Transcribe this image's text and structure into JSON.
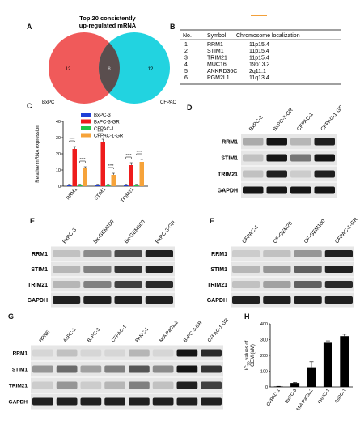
{
  "panels": {
    "A": {
      "letter": "A",
      "title_line1": "Top 20 consistently",
      "title_line2": "up-regulated mRNA",
      "left_label": "BxPC",
      "right_label": "CFPAC",
      "left_only": "12",
      "overlap": "8",
      "right_only": "12",
      "colors": {
        "left": "#f05a5a",
        "right": "#22d3e0",
        "overlap": "#5a4e4e"
      }
    },
    "B": {
      "letter": "B",
      "headers": [
        "No.",
        "Symbol",
        "Chromosome localization"
      ],
      "rows": [
        [
          "1",
          "RRM1",
          "11p15.4"
        ],
        [
          "2",
          "STIM1",
          "11p15.4"
        ],
        [
          "3",
          "TRIM21",
          "11p15.4"
        ],
        [
          "4",
          "MUC16",
          "19p13.2"
        ],
        [
          "5",
          "ANKRD36C",
          "2q11.1"
        ],
        [
          "6",
          "PGM2L1",
          "11q13.4"
        ]
      ]
    },
    "C": {
      "letter": "C",
      "chart_data": {
        "type": "bar",
        "categories": [
          "RRM1",
          "STIM1",
          "TRIM21"
        ],
        "ylabel": "Relative mRNA expression",
        "ylim": [
          0,
          40
        ],
        "yticks": [
          "0",
          "10",
          "20",
          "30",
          "40"
        ],
        "legend_position": "top-right",
        "series": [
          {
            "name": "BxPC-3",
            "color": "#1f3fd6",
            "values": [
              1,
              1,
              1
            ],
            "errors": [
              0.1,
              0.1,
              0.1
            ]
          },
          {
            "name": "BxPC-3-GR",
            "color": "#ee1c1c",
            "values": [
              23,
              27,
              13
            ],
            "errors": [
              1.5,
              2.0,
              1.5
            ]
          },
          {
            "name": "CFPAC-1",
            "color": "#22c84a",
            "values": [
              1,
              1,
              1
            ],
            "errors": [
              0.1,
              0.1,
              0.1
            ]
          },
          {
            "name": "CFPAC-1-GR",
            "color": "#f6a33a",
            "values": [
              11,
              7,
              15
            ],
            "errors": [
              1.0,
              1.0,
              1.5
            ]
          }
        ],
        "significance": [
          "****",
          "****",
          "****",
          "****",
          "****",
          "****"
        ]
      }
    },
    "D": {
      "letter": "D",
      "lanes": [
        "BxPC-3",
        "BxPC-3-GR",
        "CFPAC-1",
        "CFPAC-1-GR"
      ],
      "rows": [
        "RRM1",
        "STIM1",
        "TRIM21",
        "GAPDH"
      ],
      "intensity": [
        [
          0.25,
          0.95,
          0.2,
          0.9
        ],
        [
          0.15,
          0.95,
          0.5,
          0.95
        ],
        [
          0.15,
          0.9,
          0.1,
          0.9
        ],
        [
          0.95,
          0.95,
          0.95,
          0.95
        ]
      ]
    },
    "E": {
      "letter": "E",
      "lanes": [
        "BxPC-3",
        "Bx-GEM100",
        "Bx-GEM500",
        "BxPC-3-GR"
      ],
      "rows": [
        "RRM1",
        "STIM1",
        "TRIM21",
        "GAPDH"
      ],
      "intensity": [
        [
          0.15,
          0.4,
          0.7,
          0.9
        ],
        [
          0.2,
          0.45,
          0.8,
          0.9
        ],
        [
          0.2,
          0.45,
          0.75,
          0.85
        ],
        [
          0.9,
          0.9,
          0.9,
          0.9
        ]
      ]
    },
    "F": {
      "letter": "F",
      "lanes": [
        "CFPAC-1",
        "CF-GEM20",
        "CF-GEM100",
        "CFPAC-1-GR"
      ],
      "rows": [
        "RRM1",
        "STIM1",
        "TRIM21",
        "GAPDH"
      ],
      "intensity": [
        [
          0.1,
          0.15,
          0.35,
          0.9
        ],
        [
          0.2,
          0.35,
          0.6,
          0.9
        ],
        [
          0.15,
          0.3,
          0.6,
          0.85
        ],
        [
          0.9,
          0.9,
          0.9,
          0.9
        ]
      ]
    },
    "G": {
      "letter": "G",
      "lanes": [
        "HPNE",
        "AsPC-1",
        "BxPC-3",
        "CFPAC-1",
        "PANC-1",
        "MIA PaCa-2",
        "BxPC-3-GR",
        "CFPAC-1-GR"
      ],
      "rows": [
        "RRM1",
        "STIM1",
        "TRIM21",
        "GAPDH"
      ],
      "intensity": [
        [
          0.05,
          0.15,
          0.05,
          0.05,
          0.2,
          0.05,
          0.95,
          0.85
        ],
        [
          0.35,
          0.55,
          0.3,
          0.45,
          0.65,
          0.4,
          0.95,
          0.8
        ],
        [
          0.1,
          0.35,
          0.1,
          0.2,
          0.45,
          0.15,
          0.9,
          0.75
        ],
        [
          0.9,
          0.9,
          0.9,
          0.9,
          0.9,
          0.9,
          0.9,
          0.9
        ]
      ]
    },
    "H": {
      "letter": "H",
      "chart_data": {
        "type": "bar",
        "categories": [
          "CFPAC-1",
          "BxPC-3",
          "MIA PaCa-2",
          "PANC-1",
          "AsPC-1"
        ],
        "values": [
          3,
          25,
          125,
          280,
          322
        ],
        "errors": [
          1,
          3,
          35,
          12,
          12
        ],
        "ylabel_main": "IC",
        "ylabel_sub": "50",
        "ylabel_rest": " values of",
        "ylabel_line2": "GEM (nM)",
        "ylim": [
          0,
          400
        ],
        "yticks": [
          "0",
          "100",
          "200",
          "300",
          "400"
        ],
        "color": "#000000"
      }
    }
  }
}
